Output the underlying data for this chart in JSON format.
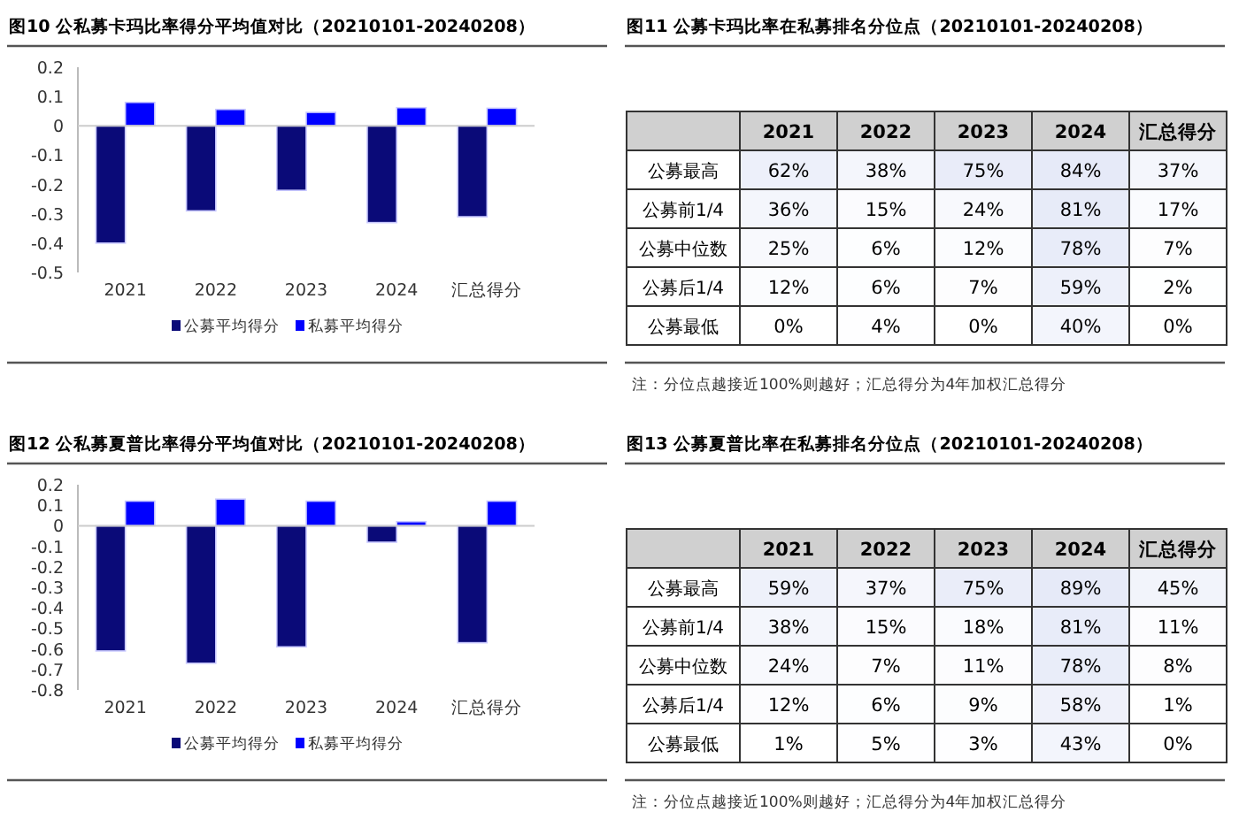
{
  "chart_data": [
    {
      "type": "bar",
      "title": "图10 公私募卡玛比率得分平均值对比（20210101-20240208）",
      "categories": [
        "2021",
        "2022",
        "2023",
        "2024",
        "汇总得分"
      ],
      "series": [
        {
          "name": "公募平均得分",
          "color": "#0a0a78",
          "values": [
            -0.4,
            -0.29,
            -0.22,
            -0.33,
            -0.31
          ]
        },
        {
          "name": "私募平均得分",
          "color": "#0000ff",
          "values": [
            0.08,
            0.056,
            0.046,
            0.062,
            0.06
          ]
        }
      ],
      "ylim": [
        -0.5,
        0.2
      ],
      "yticks": [
        0.2,
        0.1,
        0,
        -0.1,
        -0.2,
        -0.3,
        -0.4,
        -0.5
      ],
      "legend": "bottom"
    },
    {
      "type": "heatmap",
      "title": "图11 公募卡玛比率在私募排名分位点（20210101-20240208）",
      "categories": [
        "2021",
        "2022",
        "2023",
        "2024",
        "汇总得分"
      ],
      "y_categories": [
        "公募最高",
        "公募前1/4",
        "公募中位数",
        "公募后1/4",
        "公募最低"
      ],
      "cells": [
        [
          62,
          38,
          75,
          84,
          37
        ],
        [
          36,
          15,
          24,
          81,
          17
        ],
        [
          25,
          6,
          12,
          78,
          7
        ],
        [
          12,
          6,
          7,
          59,
          2
        ],
        [
          0,
          4,
          0,
          40,
          0
        ]
      ],
      "cell_labels": [
        [
          "62%",
          "38%",
          "75%",
          "84%",
          "37%"
        ],
        [
          "36%",
          "15%",
          "24%",
          "81%",
          "17%"
        ],
        [
          "25%",
          "6%",
          "12%",
          "78%",
          "7%"
        ],
        [
          "12%",
          "6%",
          "7%",
          "59%",
          "2%"
        ],
        [
          "0%",
          "4%",
          "0%",
          "40%",
          "0%"
        ]
      ],
      "annotations": [
        "注：分位点越接近100%则越好；汇总得分为4年加权汇总得分"
      ]
    },
    {
      "type": "bar",
      "title": "图12 公私募夏普比率得分平均值对比（20210101-20240208）",
      "categories": [
        "2021",
        "2022",
        "2023",
        "2024",
        "汇总得分"
      ],
      "series": [
        {
          "name": "公募平均得分",
          "color": "#0a0a78",
          "values": [
            -0.61,
            -0.67,
            -0.59,
            -0.08,
            -0.57
          ]
        },
        {
          "name": "私募平均得分",
          "color": "#0000ff",
          "values": [
            0.12,
            0.13,
            0.12,
            0.02,
            0.12
          ]
        }
      ],
      "ylim": [
        -0.8,
        0.2
      ],
      "yticks": [
        0.2,
        0.1,
        0,
        -0.1,
        -0.2,
        -0.3,
        -0.4,
        -0.5,
        -0.6,
        -0.7,
        -0.8
      ],
      "legend": "bottom"
    },
    {
      "type": "heatmap",
      "title": "图13 公募夏普比率在私募排名分位点（20210101-20240208）",
      "categories": [
        "2021",
        "2022",
        "2023",
        "2024",
        "汇总得分"
      ],
      "y_categories": [
        "公募最高",
        "公募前1/4",
        "公募中位数",
        "公募后1/4",
        "公募最低"
      ],
      "cells": [
        [
          59,
          37,
          75,
          89,
          45
        ],
        [
          38,
          15,
          18,
          81,
          11
        ],
        [
          24,
          7,
          11,
          78,
          8
        ],
        [
          12,
          6,
          9,
          58,
          1
        ],
        [
          1,
          5,
          3,
          43,
          0
        ]
      ],
      "cell_labels": [
        [
          "59%",
          "37%",
          "75%",
          "89%",
          "45%"
        ],
        [
          "38%",
          "15%",
          "18%",
          "81%",
          "11%"
        ],
        [
          "24%",
          "7%",
          "11%",
          "78%",
          "8%"
        ],
        [
          "12%",
          "6%",
          "9%",
          "58%",
          "1%"
        ],
        [
          "1%",
          "5%",
          "3%",
          "43%",
          "0%"
        ]
      ],
      "annotations": [
        "注：分位点越接近100%则越好；汇总得分为4年加权汇总得分"
      ]
    }
  ]
}
